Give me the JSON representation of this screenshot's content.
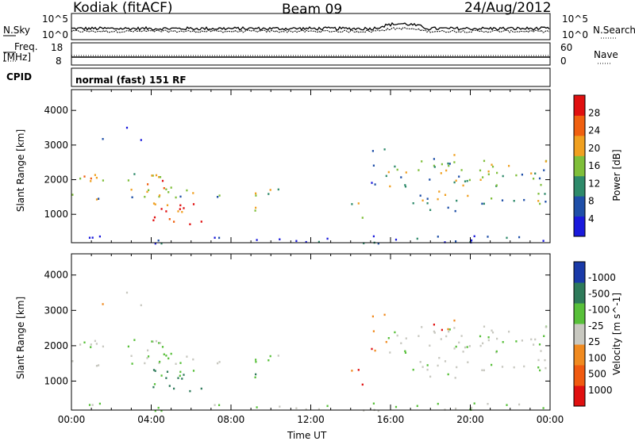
{
  "header": {
    "station": "Kodiak (fitACF)",
    "beam": "Beam 09",
    "date": "24/Aug/2012"
  },
  "top_panels": {
    "nsky_label": "N.Sky",
    "nsearch_label": "N.Search",
    "log_ticks": [
      "10^5",
      "10^0"
    ],
    "freq_label": "Freq.",
    "freq_unit": "[MHz]",
    "freq_ticks": [
      "18",
      "8"
    ],
    "nave_label": "Nave",
    "nave_ticks": [
      "60",
      "0"
    ],
    "cpid_label": "CPID",
    "cpid_value": "normal (fast) 151 RF"
  },
  "chart_data": [
    {
      "type": "heatmap",
      "title": "",
      "ylabel": "Slant Range [km]",
      "xlabel": "",
      "ylim": [
        180,
        4600
      ],
      "yticks": [
        "1000",
        "2000",
        "3000",
        "4000"
      ],
      "colorbar": {
        "label": "Power [dB]",
        "ticks": [
          "4",
          "8",
          "12",
          "16",
          "20",
          "24",
          "28"
        ],
        "colors": [
          "#1a1adc",
          "#1f4fa8",
          "#2e8a6a",
          "#7fbf3a",
          "#f0a020",
          "#f06010",
          "#e01010"
        ]
      }
    },
    {
      "type": "heatmap",
      "title": "",
      "ylabel": "Slant Range [km]",
      "xlabel": "Time UT",
      "ylim": [
        180,
        4600
      ],
      "yticks": [
        "1000",
        "2000",
        "3000",
        "4000"
      ],
      "xticks": [
        "00:00",
        "04:00",
        "08:00",
        "12:00",
        "16:00",
        "20:00",
        "00:00"
      ],
      "colorbar": {
        "label": "Velocity [m s^-1]",
        "ticks": [
          "1000",
          "500",
          "100",
          "25",
          "-25",
          "-100",
          "-500",
          "-1000"
        ],
        "colors": [
          "#1a3aa8",
          "#2e7a5a",
          "#58c03a",
          "#c8c8c0",
          "#f08a20",
          "#f05a10",
          "#e01010"
        ]
      }
    }
  ]
}
